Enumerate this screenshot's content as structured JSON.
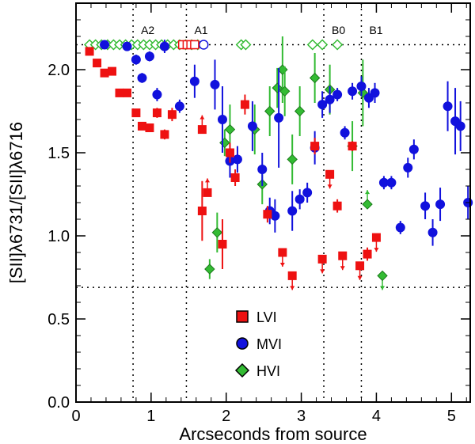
{
  "chart_data": {
    "type": "scatter",
    "xlabel": "Arcseconds from source",
    "ylabel": "[SII]λ6731/[SII]λ6716",
    "xlim": [
      0,
      5.25
    ],
    "ylim": [
      0,
      2.4
    ],
    "xticks": [
      0,
      1,
      2,
      3,
      4,
      5
    ],
    "xtick_labels": [
      "0",
      "1",
      "2",
      "3",
      "4",
      "5"
    ],
    "yticks": [
      0.0,
      0.5,
      1.0,
      1.5,
      2.0
    ],
    "ytick_labels": [
      "0.0",
      "0.5",
      "1.0",
      "1.5",
      "2.0"
    ],
    "hlines": [
      2.15,
      0.69
    ],
    "regions": [
      {
        "label": "A2",
        "x": 0.76
      },
      {
        "label": "A1",
        "x": 1.47
      },
      {
        "label": "B0",
        "x": 3.3
      },
      {
        "label": "B1",
        "x": 3.8
      }
    ],
    "colors": {
      "LVI": "#ee1111",
      "MVI": "#1111dd",
      "HVI": "#33bb33"
    },
    "legend": [
      {
        "name": "LVI",
        "marker": "square"
      },
      {
        "name": "MVI",
        "marker": "circle"
      },
      {
        "name": "HVI",
        "marker": "diamond"
      }
    ],
    "series": [
      {
        "name": "LVI",
        "marker": "square",
        "points": [
          {
            "x": 0.18,
            "y": 2.11,
            "err": 0.02
          },
          {
            "x": 0.28,
            "y": 2.04,
            "err": 0.02
          },
          {
            "x": 0.38,
            "y": 1.98,
            "err": 0.02
          },
          {
            "x": 0.48,
            "y": 1.99,
            "err": 0.02
          },
          {
            "x": 0.58,
            "y": 1.86,
            "err": 0.02
          },
          {
            "x": 0.68,
            "y": 1.86,
            "err": 0.02
          },
          {
            "x": 0.8,
            "y": 1.74,
            "err": 0.02
          },
          {
            "x": 0.88,
            "y": 1.66,
            "err": 0.02
          },
          {
            "x": 0.98,
            "y": 1.65,
            "err": 0.02
          },
          {
            "x": 1.08,
            "y": 1.74,
            "err": 0.03
          },
          {
            "x": 1.18,
            "y": 1.61,
            "err": 0.03
          },
          {
            "x": 1.28,
            "y": 1.73,
            "err": 0.04
          },
          {
            "x": 1.42,
            "y": 2.15,
            "err": 0.02,
            "open": true
          },
          {
            "x": 1.48,
            "y": 2.15,
            "err": 0.02,
            "open": true
          },
          {
            "x": 1.53,
            "y": 2.15,
            "err": 0.02,
            "open": true
          },
          {
            "x": 1.58,
            "y": 2.15,
            "err": 0.02,
            "open": true
          },
          {
            "x": 1.68,
            "y": 1.64,
            "limit": "up"
          },
          {
            "x": 1.68,
            "y": 1.15,
            "err": 0.18
          },
          {
            "x": 1.75,
            "y": 1.26,
            "limit": "up"
          },
          {
            "x": 1.95,
            "y": 0.95,
            "err": 0.15
          },
          {
            "x": 2.05,
            "y": 1.5,
            "err": 0.06
          },
          {
            "x": 2.12,
            "y": 1.35,
            "err": 0.05
          },
          {
            "x": 2.25,
            "y": 1.79,
            "err": 0.06
          },
          {
            "x": 2.55,
            "y": 1.13,
            "err": 0.05
          },
          {
            "x": 2.75,
            "y": 0.9,
            "limit": "down"
          },
          {
            "x": 2.88,
            "y": 0.76,
            "limit": "down"
          },
          {
            "x": 3.18,
            "y": 1.54,
            "err": 0.05
          },
          {
            "x": 3.28,
            "y": 0.86,
            "limit": "down"
          },
          {
            "x": 3.38,
            "y": 1.37,
            "limit": "down"
          },
          {
            "x": 3.48,
            "y": 1.18,
            "err": 0.04
          },
          {
            "x": 3.55,
            "y": 0.88,
            "limit": "down"
          },
          {
            "x": 3.68,
            "y": 1.54,
            "err": 0.03
          },
          {
            "x": 3.78,
            "y": 0.82,
            "limit": "down"
          },
          {
            "x": 3.88,
            "y": 0.89,
            "err": 0.04
          },
          {
            "x": 4.0,
            "y": 0.99,
            "limit": "down"
          }
        ]
      },
      {
        "name": "MVI",
        "marker": "circle",
        "points": [
          {
            "x": 0.38,
            "y": 2.15,
            "err": 0.02
          },
          {
            "x": 0.68,
            "y": 2.14,
            "err": 0.02
          },
          {
            "x": 0.8,
            "y": 2.06,
            "err": 0.03
          },
          {
            "x": 0.88,
            "y": 1.95,
            "err": 0.03
          },
          {
            "x": 0.98,
            "y": 2.08,
            "err": 0.03
          },
          {
            "x": 1.08,
            "y": 1.85,
            "err": 0.04
          },
          {
            "x": 1.18,
            "y": 2.14,
            "err": 0.04
          },
          {
            "x": 1.38,
            "y": 1.78,
            "err": 0.04
          },
          {
            "x": 1.7,
            "y": 2.15,
            "err": 0.02,
            "open": true
          },
          {
            "x": 1.58,
            "y": 1.93,
            "err": 0.1
          },
          {
            "x": 1.85,
            "y": 1.91,
            "err": 0.15
          },
          {
            "x": 1.95,
            "y": 1.7,
            "err": 0.2
          },
          {
            "x": 2.05,
            "y": 1.45,
            "err": 0.1
          },
          {
            "x": 2.15,
            "y": 1.46,
            "err": 0.08
          },
          {
            "x": 2.35,
            "y": 1.66,
            "err": 0.15
          },
          {
            "x": 2.48,
            "y": 1.4,
            "err": 0.1
          },
          {
            "x": 2.58,
            "y": 1.15,
            "err": 0.08
          },
          {
            "x": 2.65,
            "y": 1.12,
            "err": 0.1
          },
          {
            "x": 2.7,
            "y": 1.71,
            "err": 0.3
          },
          {
            "x": 2.88,
            "y": 1.15,
            "err": 0.12
          },
          {
            "x": 2.98,
            "y": 1.22,
            "err": 0.06
          },
          {
            "x": 3.08,
            "y": 1.26,
            "err": 0.06
          },
          {
            "x": 3.18,
            "y": 1.53,
            "err": 0.1
          },
          {
            "x": 3.28,
            "y": 1.79,
            "err": 0.08
          },
          {
            "x": 3.38,
            "y": 1.82,
            "err": 0.08
          },
          {
            "x": 3.48,
            "y": 1.85,
            "err": 0.04
          },
          {
            "x": 3.58,
            "y": 1.62,
            "err": 0.04
          },
          {
            "x": 3.68,
            "y": 1.87,
            "err": 0.05
          },
          {
            "x": 3.8,
            "y": 1.9,
            "err": 0.06
          },
          {
            "x": 3.9,
            "y": 1.83,
            "err": 0.06
          },
          {
            "x": 3.98,
            "y": 1.86,
            "err": 0.06
          },
          {
            "x": 4.1,
            "y": 1.32,
            "err": 0.04
          },
          {
            "x": 4.2,
            "y": 1.32,
            "err": 0.04
          },
          {
            "x": 4.32,
            "y": 1.05,
            "err": 0.04
          },
          {
            "x": 4.42,
            "y": 1.41,
            "err": 0.06
          },
          {
            "x": 4.5,
            "y": 1.52,
            "err": 0.06
          },
          {
            "x": 4.65,
            "y": 1.18,
            "err": 0.08
          },
          {
            "x": 4.75,
            "y": 1.02,
            "err": 0.08
          },
          {
            "x": 4.85,
            "y": 1.19,
            "err": 0.1
          },
          {
            "x": 4.95,
            "y": 1.78,
            "err": 0.15
          },
          {
            "x": 5.05,
            "y": 1.69,
            "err": 0.2
          },
          {
            "x": 5.12,
            "y": 1.66,
            "err": 0.15
          },
          {
            "x": 5.22,
            "y": 1.2,
            "err": 0.1
          }
        ]
      },
      {
        "name": "HVI",
        "marker": "diamond",
        "points": [
          {
            "x": 0.18,
            "y": 2.15,
            "open": true
          },
          {
            "x": 0.26,
            "y": 2.15,
            "open": true
          },
          {
            "x": 0.34,
            "y": 2.15,
            "open": true
          },
          {
            "x": 0.42,
            "y": 2.15,
            "open": true
          },
          {
            "x": 0.5,
            "y": 2.15,
            "open": true
          },
          {
            "x": 0.58,
            "y": 2.15,
            "open": true
          },
          {
            "x": 0.66,
            "y": 2.15,
            "open": true
          },
          {
            "x": 0.74,
            "y": 2.15,
            "open": true
          },
          {
            "x": 0.82,
            "y": 2.15,
            "open": true
          },
          {
            "x": 0.9,
            "y": 2.15,
            "open": true
          },
          {
            "x": 0.98,
            "y": 2.15,
            "open": true
          },
          {
            "x": 1.06,
            "y": 2.15,
            "open": true
          },
          {
            "x": 1.14,
            "y": 2.15,
            "open": true
          },
          {
            "x": 1.22,
            "y": 2.15,
            "open": true
          },
          {
            "x": 1.3,
            "y": 2.15,
            "open": true
          },
          {
            "x": 1.38,
            "y": 2.15,
            "open": true
          },
          {
            "x": 1.46,
            "y": 2.15,
            "open": true
          },
          {
            "x": 1.54,
            "y": 2.15,
            "open": true
          },
          {
            "x": 1.62,
            "y": 2.15,
            "open": true
          },
          {
            "x": 2.2,
            "y": 2.15,
            "open": true
          },
          {
            "x": 2.26,
            "y": 2.15,
            "open": true
          },
          {
            "x": 3.15,
            "y": 2.15,
            "open": true
          },
          {
            "x": 3.28,
            "y": 2.15,
            "open": true
          },
          {
            "x": 3.48,
            "y": 2.15,
            "open": true
          },
          {
            "x": 1.78,
            "y": 0.8,
            "err": 0.06
          },
          {
            "x": 1.88,
            "y": 1.02,
            "err": 0.12
          },
          {
            "x": 1.98,
            "y": 1.56,
            "err": 0.08
          },
          {
            "x": 2.05,
            "y": 1.64,
            "err": 0.15
          },
          {
            "x": 2.38,
            "y": 1.64,
            "err": 0.15
          },
          {
            "x": 2.48,
            "y": 1.31,
            "err": 0.12
          },
          {
            "x": 2.58,
            "y": 1.75,
            "err": 0.15
          },
          {
            "x": 2.68,
            "y": 1.89,
            "err": 0.12
          },
          {
            "x": 2.75,
            "y": 2.0,
            "err": 0.2
          },
          {
            "x": 2.78,
            "y": 1.87,
            "err": 0.15
          },
          {
            "x": 2.88,
            "y": 1.46,
            "err": 0.15
          },
          {
            "x": 2.98,
            "y": 1.75,
            "err": 0.15
          },
          {
            "x": 3.18,
            "y": 1.95,
            "err": 0.15
          },
          {
            "x": 3.38,
            "y": 1.88,
            "err": 0.15
          },
          {
            "x": 3.68,
            "y": 1.54,
            "err": 0.15
          },
          {
            "x": 3.82,
            "y": 1.86,
            "err": 0.2
          },
          {
            "x": 3.88,
            "y": 1.19,
            "limit": "up"
          },
          {
            "x": 4.08,
            "y": 0.76,
            "limit": "down"
          }
        ]
      }
    ]
  }
}
